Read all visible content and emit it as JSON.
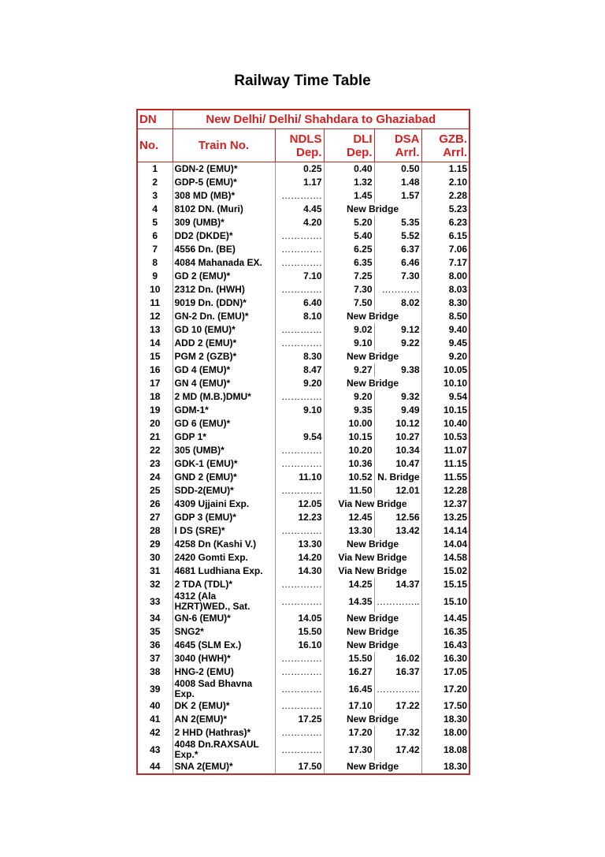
{
  "title": "Railway Time Table",
  "header": {
    "dn": "DN",
    "route": "New Delhi/ Delhi/ Shahdara to Ghaziabad",
    "no": "No.",
    "train": "Train No.",
    "stations": [
      {
        "name": "NDLS",
        "kind": "Dep."
      },
      {
        "name": "DLI",
        "kind": "Dep."
      },
      {
        "name": "DSA",
        "kind": "Arrl."
      },
      {
        "name": "GZB.",
        "kind": "Arrl."
      }
    ]
  },
  "rows": [
    [
      "1",
      "GDN-2 (EMU)*",
      "0.25",
      "0.40",
      "0.50",
      "1.15"
    ],
    [
      "2",
      "GDP-5 (EMU)*",
      "1.17",
      "1.32",
      "1.48",
      "2.10"
    ],
    [
      "3",
      "308 MD (MB)*",
      "………….",
      "1.45",
      "1.57",
      "2.28"
    ],
    [
      "4",
      "8102 DN. (Muri)",
      "4.45",
      "New Bridge",
      "5.23"
    ],
    [
      "5",
      "309 (UMB)*",
      "4.20",
      "5.20",
      "5.35",
      "6.23"
    ],
    [
      "6",
      "DD2 (DKDE)*",
      "………….",
      "5.40",
      "5.52",
      "6.15"
    ],
    [
      "7",
      "4556 Dn. (BE)",
      "………….",
      "6.25",
      "6.37",
      "7.06"
    ],
    [
      "8",
      "4084 Mahanada EX.",
      "………….",
      "6.35",
      "6.46",
      "7.17"
    ],
    [
      "9",
      "GD 2 (EMU)*",
      "7.10",
      "7.25",
      "7.30",
      "8.00"
    ],
    [
      "10",
      "2312 Dn. (HWH)",
      "………….",
      "7.30",
      "…………",
      "8.03"
    ],
    [
      "11",
      "9019 Dn. (DDN)*",
      "6.40",
      "7.50",
      "8.02",
      "8.30"
    ],
    [
      "12",
      "GN-2 Dn. (EMU)*",
      "8.10",
      "New Bridge",
      "8.50"
    ],
    [
      "13",
      "GD 10 (EMU)*",
      "………….",
      "9.02",
      "9.12",
      "9.40"
    ],
    [
      "14",
      "ADD 2 (EMU)*",
      "………….",
      "9.10",
      "9.22",
      "9.45"
    ],
    [
      "15",
      "PGM 2 (GZB)*",
      "8.30",
      "New Bridge",
      "9.20"
    ],
    [
      "16",
      "GD 4 (EMU)*",
      "8.47",
      "9.27",
      "9.38",
      "10.05"
    ],
    [
      "17",
      "GN 4 (EMU)*",
      "9.20",
      "New Bridge",
      "10.10"
    ],
    [
      "18",
      "2 MD (M.B.)DMU*",
      "………….",
      "9.20",
      "9.32",
      "9.54"
    ],
    [
      "19",
      "GDM-1*",
      "9.10",
      "9.35",
      "9.49",
      "10.15"
    ],
    [
      "20",
      "GD 6 (EMU)*",
      null,
      "10.00",
      "10.12",
      "10.40"
    ],
    [
      "21",
      "GDP 1*",
      "9.54",
      "10.15",
      "10.27",
      "10.53"
    ],
    [
      "22",
      "305 (UMB)*",
      "………….",
      "10.20",
      "10.34",
      "11.07"
    ],
    [
      "23",
      "GDK-1 (EMU)*",
      "………….",
      "10.36",
      "10.47",
      "11.15"
    ],
    [
      "24",
      "GND 2 (EMU)*",
      "11.10",
      "10.52",
      "N. Bridge",
      "11.55"
    ],
    [
      "25",
      "SDD-2(EMU)*",
      "………….",
      "11.50",
      "12.01",
      "12.28"
    ],
    [
      "26",
      "4309 Ujjaini Exp.",
      "12.05",
      "Via New Bridge",
      "12.37"
    ],
    [
      "27",
      "GDP 3 (EMU)*",
      "12.23",
      "12.45",
      "12.56",
      "13.25"
    ],
    [
      "28",
      "I DS (SRE)*",
      "………….",
      "13.30",
      "13.42",
      "14.14"
    ],
    [
      "29",
      "4258 Dn (Kashi V.)",
      "13.30",
      "New Bridge",
      "14.04"
    ],
    [
      "30",
      "2420 Gomti Exp.",
      "14.20",
      "Via New Bridge",
      "14.58"
    ],
    [
      "31",
      "4681 Ludhiana Exp.",
      "14.30",
      "Via New Bridge",
      "15.02"
    ],
    [
      "32",
      "2 TDA (TDL)*",
      "………….",
      "14.25",
      "14.37",
      "15.15"
    ],
    [
      "33",
      "4312 (Ala HZRT)WED., Sat.",
      "………….",
      "14.35",
      "…………..",
      "15.10"
    ],
    [
      "34",
      "GN-6 (EMU)*",
      "14.05",
      "New Bridge",
      "14.45"
    ],
    [
      "35",
      "SNG2*",
      "15.50",
      "New Bridge",
      "16.35"
    ],
    [
      "36",
      "4645 (SLM Ex.)",
      "16.10",
      "New Bridge",
      "16.43"
    ],
    [
      "37",
      "3040 (HWH)*",
      "………….",
      "15.50",
      "16.02",
      "16.30"
    ],
    [
      "38",
      "HNG-2 (EMU)",
      "………….",
      "16.27",
      "16.37",
      "17.05"
    ],
    [
      "39",
      "4008 Sad Bhavna Exp.",
      "………….",
      "16.45",
      "…………..",
      "17.20"
    ],
    [
      "40",
      "DK 2 (EMU)*",
      "………….",
      "17.10",
      "17.22",
      "17.50"
    ],
    [
      "41",
      "AN 2(EMU)*",
      "17.25",
      "New Bridge",
      "18.30"
    ],
    [
      "42",
      "2 HHD (Hathras)*",
      "………….",
      "17.20",
      "17.32",
      "18.00"
    ],
    [
      "43",
      "4048 Dn.RAXSAUL Exp.*",
      "………….",
      "17.30",
      "17.42",
      "18.08"
    ],
    [
      "44",
      "SNA 2(EMU)*",
      "17.50",
      "New Bridge",
      "18.30"
    ]
  ]
}
